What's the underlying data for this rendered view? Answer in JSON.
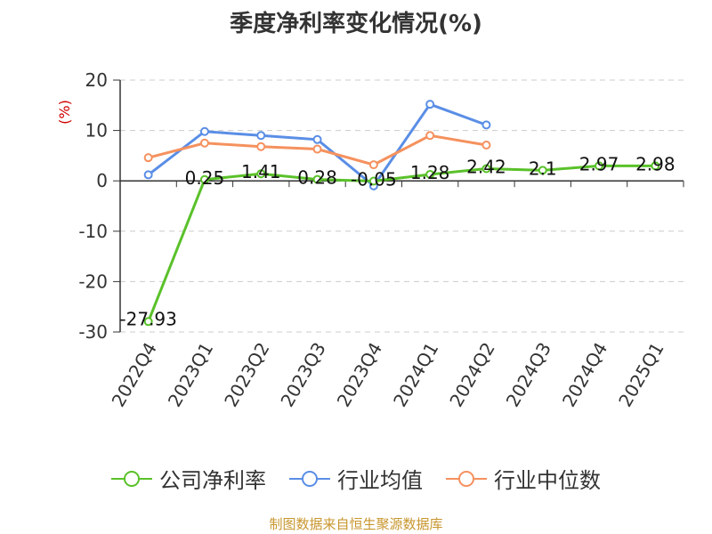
{
  "chart_data": {
    "type": "line",
    "title": "季度净利率变化情况(%)",
    "ylabel": "(%)",
    "categories": [
      "2022Q4",
      "2023Q1",
      "2023Q2",
      "2023Q3",
      "2023Q4",
      "2024Q1",
      "2024Q2",
      "2024Q3",
      "2024Q4",
      "2025Q1"
    ],
    "ylim": [
      -30,
      20
    ],
    "yticks": [
      20,
      10,
      0,
      -10,
      -20,
      -30
    ],
    "grid": true,
    "legend_position": "bottom",
    "series": [
      {
        "name": "公司净利率",
        "color": "#5ac12a",
        "values": [
          -27.93,
          0.25,
          1.41,
          0.28,
          -0.05,
          1.28,
          2.42,
          2.1,
          2.97,
          2.98
        ],
        "labels": [
          "-27.93",
          "0.25",
          "1.41",
          "0.28",
          "-0.05",
          "1.28",
          "2.42",
          "2.1",
          "2.97",
          "2.98"
        ]
      },
      {
        "name": "行业均值",
        "color": "#5a8ee6",
        "values": [
          1.2,
          9.8,
          9.0,
          8.2,
          -1.0,
          15.2,
          11.1,
          null,
          null,
          null
        ]
      },
      {
        "name": "行业中位数",
        "color": "#f5915e",
        "values": [
          4.6,
          7.5,
          6.8,
          6.3,
          3.2,
          9.0,
          7.1,
          null,
          null,
          null
        ]
      }
    ]
  },
  "footer": {
    "source": "制图数据来自恒生聚源数据库"
  }
}
